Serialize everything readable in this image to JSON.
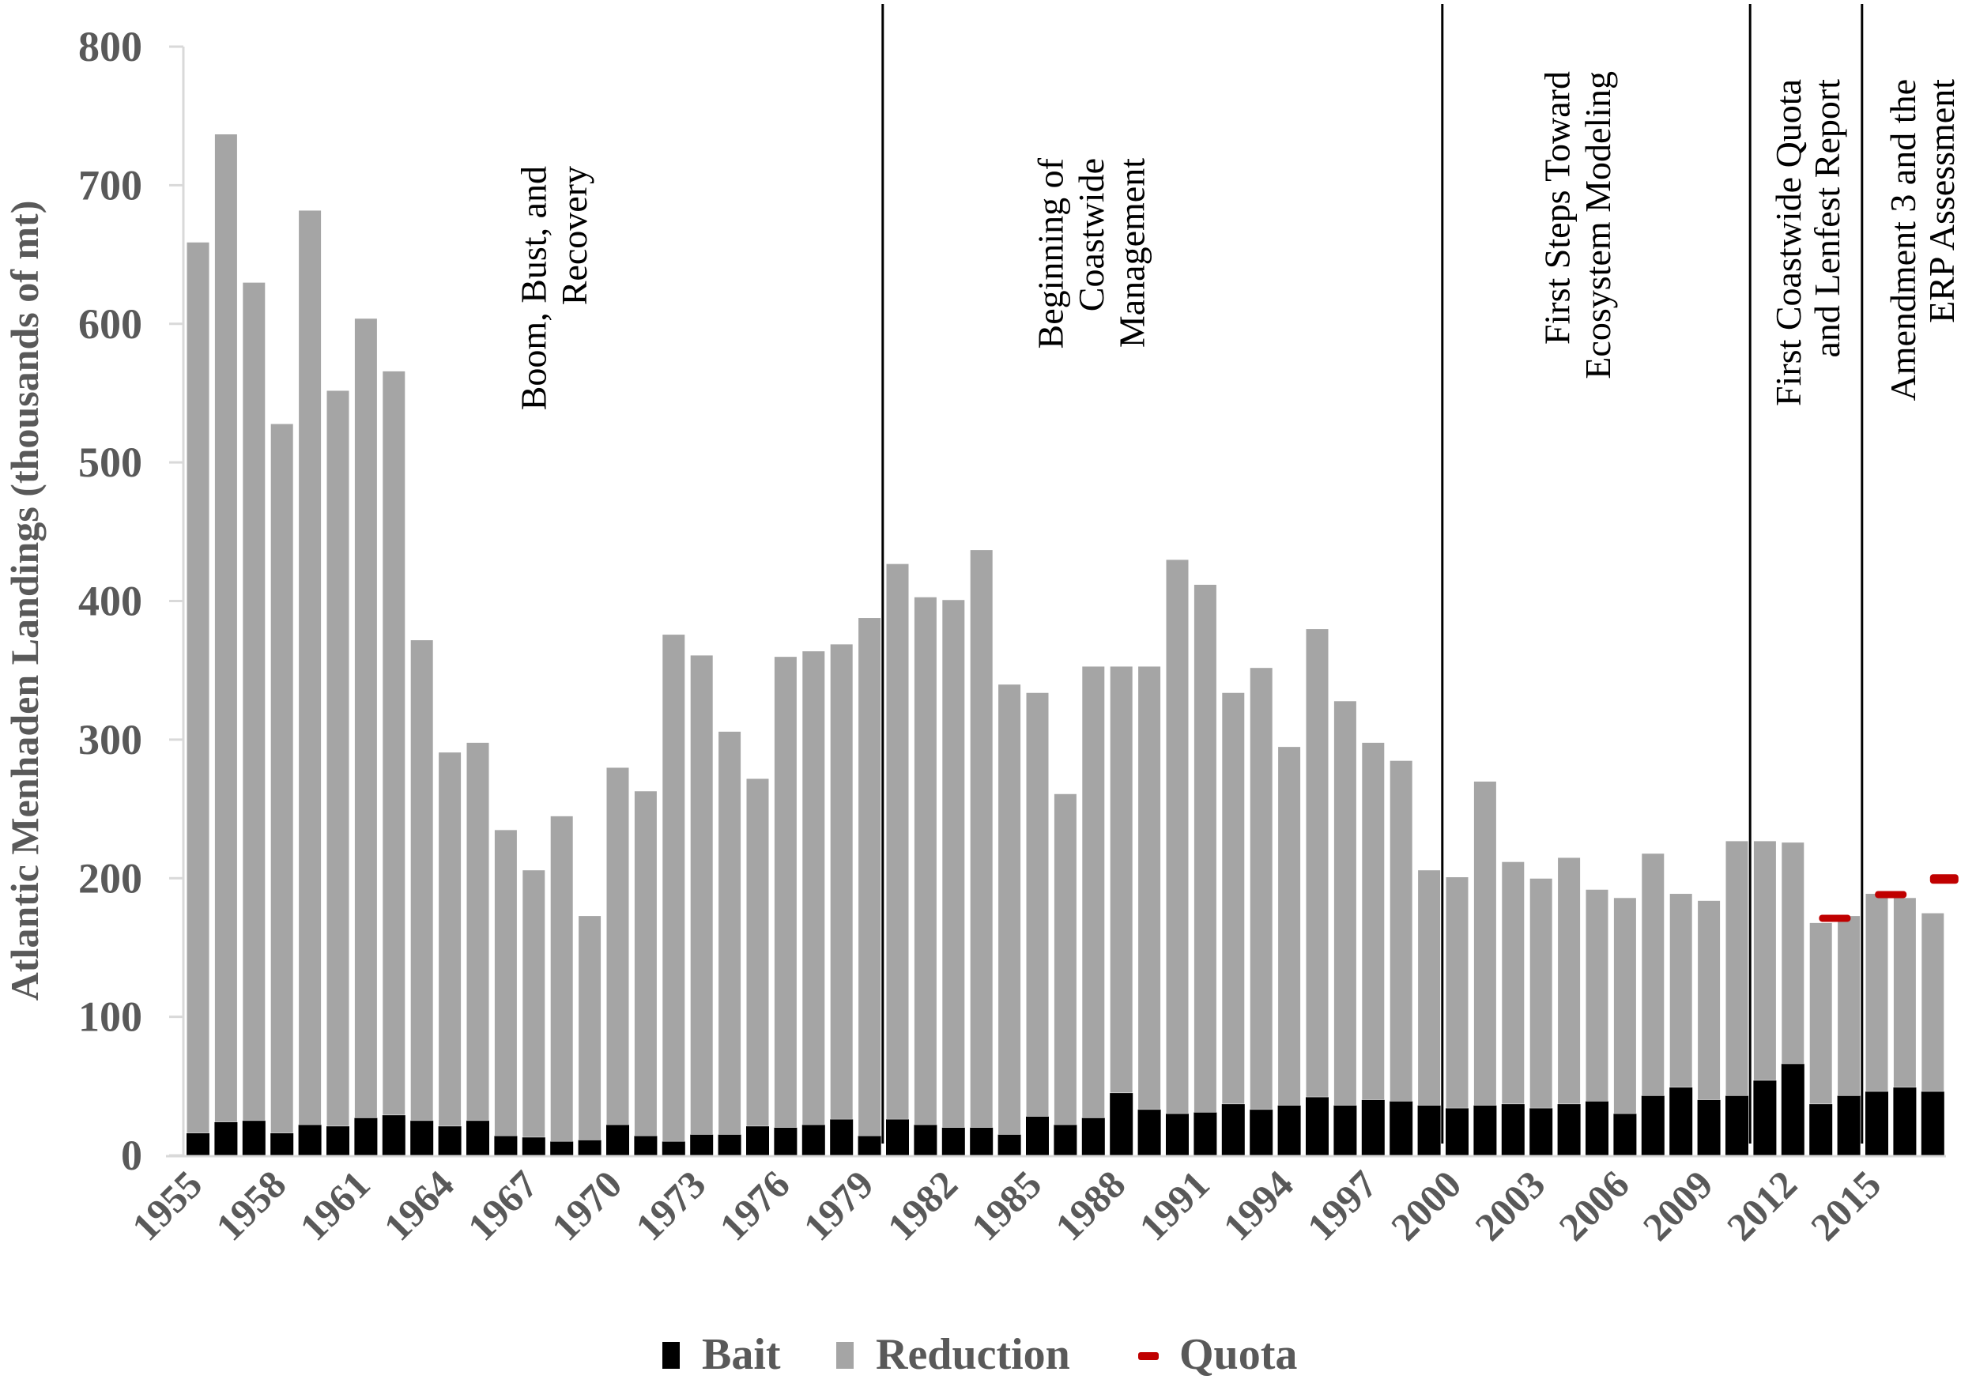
{
  "chart_data": {
    "type": "bar",
    "stacked": true,
    "title": "",
    "xlabel": "",
    "ylabel": "Atlantic Menhaden Landings (thousands of mt)",
    "ylim": [
      0,
      800
    ],
    "yticks": [
      0,
      100,
      200,
      300,
      400,
      500,
      600,
      700,
      800
    ],
    "grid": false,
    "legend_position": "bottom",
    "x_tick_labels": [
      "1955",
      "1958",
      "1961",
      "1964",
      "1967",
      "1970",
      "1973",
      "1976",
      "1979",
      "1982",
      "1985",
      "1988",
      "1991",
      "1994",
      "1997",
      "2000",
      "2003",
      "2006",
      "2009",
      "2012",
      "2015"
    ],
    "categories": [
      "1955",
      "1956",
      "1957",
      "1958",
      "1959",
      "1960",
      "1961",
      "1962",
      "1963",
      "1964",
      "1965",
      "1966",
      "1967",
      "1968",
      "1969",
      "1970",
      "1971",
      "1972",
      "1973",
      "1974",
      "1975",
      "1976",
      "1977",
      "1978",
      "1979",
      "1980",
      "1981",
      "1982",
      "1983",
      "1984",
      "1985",
      "1986",
      "1987",
      "1988",
      "1989",
      "1990",
      "1991",
      "1992",
      "1993",
      "1994",
      "1995",
      "1996",
      "1997",
      "1998",
      "1999",
      "2000",
      "2001",
      "2002",
      "2003",
      "2004",
      "2005",
      "2006",
      "2007",
      "2008",
      "2009",
      "2010",
      "2011",
      "2012",
      "2013",
      "2014",
      "2015",
      "2016",
      "2017"
    ],
    "totals": [
      659,
      737,
      630,
      528,
      682,
      552,
      604,
      566,
      372,
      291,
      298,
      235,
      206,
      245,
      173,
      280,
      263,
      376,
      361,
      306,
      272,
      360,
      364,
      369,
      388,
      427,
      403,
      401,
      437,
      340,
      334,
      261,
      353,
      353,
      353,
      430,
      412,
      334,
      352,
      295,
      380,
      328,
      298,
      285,
      206,
      201,
      270,
      212,
      200,
      215,
      192,
      186,
      218,
      189,
      184,
      227,
      227,
      226,
      168,
      173,
      189,
      186,
      175
    ],
    "series": [
      {
        "name": "Bait",
        "color": "#000000",
        "values": [
          16,
          24,
          25,
          16,
          22,
          21,
          27,
          29,
          25,
          21,
          25,
          14,
          13,
          10,
          11,
          22,
          14,
          10,
          15,
          15,
          21,
          20,
          22,
          26,
          14,
          26,
          22,
          20,
          20,
          15,
          28,
          22,
          27,
          45,
          33,
          30,
          31,
          37,
          33,
          36,
          42,
          36,
          40,
          39,
          36,
          34,
          36,
          37,
          34,
          37,
          39,
          30,
          43,
          49,
          40,
          43,
          54,
          66,
          37,
          43,
          46,
          49,
          46
        ]
      },
      {
        "name": "Reduction",
        "color": "#a5a5a5",
        "values": [
          643,
          713,
          605,
          512,
          660,
          531,
          577,
          537,
          347,
          270,
          273,
          221,
          193,
          235,
          162,
          258,
          249,
          366,
          346,
          291,
          251,
          340,
          342,
          343,
          374,
          401,
          381,
          381,
          417,
          325,
          306,
          239,
          326,
          308,
          320,
          400,
          381,
          297,
          319,
          259,
          338,
          292,
          258,
          246,
          170,
          167,
          234,
          175,
          166,
          178,
          153,
          156,
          175,
          140,
          144,
          184,
          173,
          160,
          131,
          130,
          143,
          137,
          129
        ]
      },
      {
        "name": "Quota",
        "color": "#c00000",
        "type": "marker",
        "points": [
          {
            "x": "2013",
            "value": 170.8
          },
          {
            "x": "2014",
            "value": 170.8
          },
          {
            "x": "2015",
            "value": 187.9
          },
          {
            "x": "2016",
            "value": 187.9
          },
          {
            "x": "2017",
            "value": 200
          }
        ]
      }
    ],
    "annotations": [
      {
        "lines": [
          "Boom, Bust, and",
          "Recovery"
        ],
        "span": [
          "1955",
          "1979"
        ]
      },
      {
        "lines": [
          "Beginning of",
          "Coastwide",
          "Management"
        ],
        "span": [
          "1980",
          "1999"
        ]
      },
      {
        "lines": [
          "First Steps Toward",
          "Ecosystem Modeling"
        ],
        "span": [
          "2000",
          "2010"
        ]
      },
      {
        "lines": [
          "First Coastwide Quota",
          "and Lenfest Report"
        ],
        "span": [
          "2011",
          "2014"
        ]
      },
      {
        "lines": [
          "Amendment 3 and the",
          "ERP Assessment"
        ],
        "span": [
          "2015",
          "2017"
        ]
      }
    ],
    "dividers_between": [
      [
        "1979",
        "1980"
      ],
      [
        "1999",
        "2000"
      ],
      [
        "2010",
        "2011"
      ],
      [
        "2014",
        "2015"
      ]
    ]
  },
  "legend": {
    "items": [
      {
        "label": "Bait",
        "color": "#000000",
        "shape": "square"
      },
      {
        "label": "Reduction",
        "color": "#a5a5a5",
        "shape": "square"
      },
      {
        "label": "Quota",
        "color": "#c00000",
        "shape": "dash"
      }
    ]
  },
  "colors": {
    "axis": "#d9d9d9",
    "text": "#595959",
    "divider": "#000000"
  }
}
